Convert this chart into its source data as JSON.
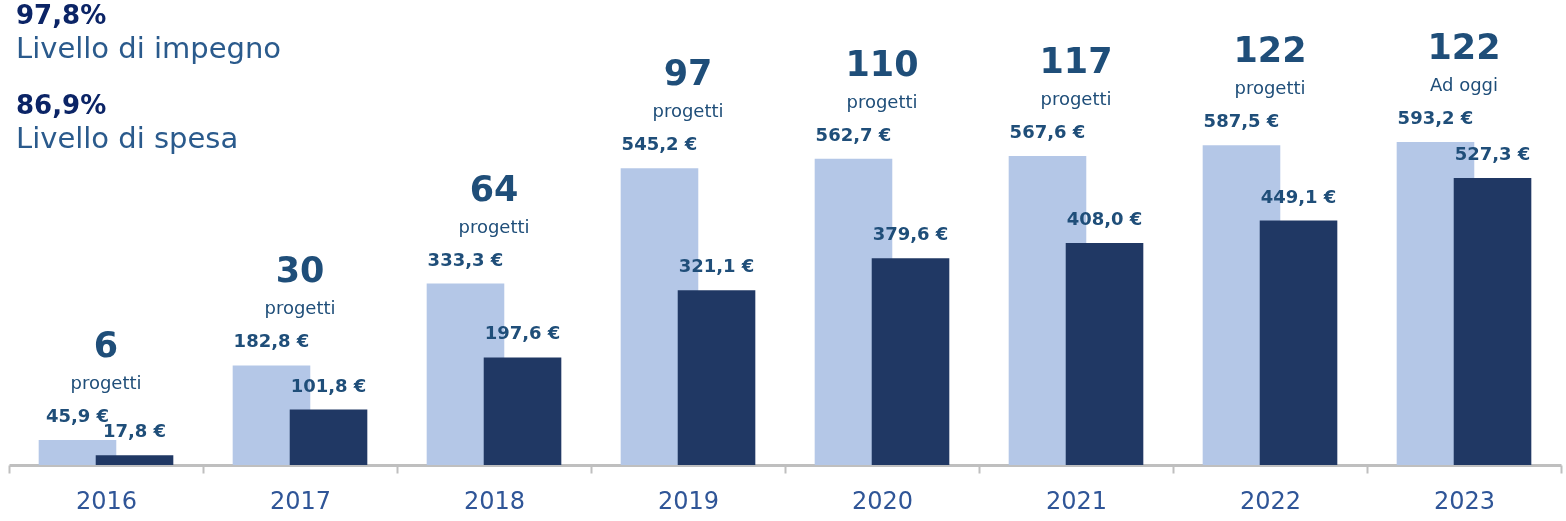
{
  "chart_data": {
    "type": "bar",
    "categories": [
      "2016",
      "2017",
      "2018",
      "2019",
      "2020",
      "2021",
      "2022",
      "2023"
    ],
    "series": [
      {
        "color": "#b4c7e7",
        "values": [
          45.9,
          182.8,
          333.3,
          545.2,
          562.7,
          567.6,
          587.5,
          593.2
        ],
        "value_labels": [
          "45,9 €",
          "182,8 €",
          "333,3 €",
          "545,2 €",
          "562,7 €",
          "567,6 €",
          "587,5 €",
          "593,2 €"
        ]
      },
      {
        "color": "#203864",
        "values": [
          17.8,
          101.8,
          197.6,
          321.1,
          379.6,
          408.0,
          449.1,
          527.3
        ],
        "value_labels": [
          "17,8 €",
          "101,8 €",
          "197,6 €",
          "321,1 €",
          "379,6 €",
          "408,0 €",
          "449,1 €",
          "527,3 €"
        ]
      }
    ],
    "annotations": [
      "97,8%",
      "Livello di impegno",
      "86,9%",
      "Livello di spesa",
      "6",
      "progetti",
      "30",
      "progetti",
      "64",
      "progetti",
      "97",
      "progetti",
      "110",
      "progetti",
      "117",
      "progetti",
      "122",
      "progetti",
      "122",
      "Ad oggi"
    ]
  }
}
